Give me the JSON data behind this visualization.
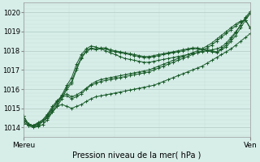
{
  "title": "Pression niveau de la mer( hPa )",
  "xlabel_left": "Mereu",
  "xlabel_right": "Ven",
  "ylim": [
    1013.5,
    1020.5
  ],
  "yticks": [
    1014,
    1015,
    1016,
    1017,
    1018,
    1019,
    1020
  ],
  "bg_color": "#d6ede8",
  "grid_major_color": "#b8d0c8",
  "grid_minor_color": "#c8ddd8",
  "line_color": "#1a5c2a",
  "n_points": 48,
  "lines": [
    [
      1014.2,
      1014.15,
      1014.1,
      1014.2,
      1014.3,
      1014.5,
      1014.8,
      1015.1,
      1015.2,
      1015.1,
      1015.0,
      1015.1,
      1015.2,
      1015.35,
      1015.5,
      1015.6,
      1015.65,
      1015.7,
      1015.75,
      1015.8,
      1015.85,
      1015.9,
      1015.95,
      1016.0,
      1016.05,
      1016.1,
      1016.15,
      1016.2,
      1016.3,
      1016.4,
      1016.5,
      1016.6,
      1016.7,
      1016.8,
      1016.9,
      1017.0,
      1017.1,
      1017.2,
      1017.35,
      1017.5,
      1017.65,
      1017.8,
      1017.95,
      1018.1,
      1018.3,
      1018.5,
      1018.7,
      1018.9
    ],
    [
      1014.3,
      1014.1,
      1014.05,
      1014.1,
      1014.3,
      1014.6,
      1015.0,
      1015.35,
      1015.6,
      1015.65,
      1015.5,
      1015.6,
      1015.75,
      1016.0,
      1016.2,
      1016.3,
      1016.4,
      1016.45,
      1016.5,
      1016.55,
      1016.6,
      1016.65,
      1016.7,
      1016.75,
      1016.8,
      1016.85,
      1016.9,
      1017.0,
      1017.1,
      1017.2,
      1017.3,
      1017.4,
      1017.5,
      1017.6,
      1017.7,
      1017.8,
      1017.9,
      1018.0,
      1018.15,
      1018.3,
      1018.5,
      1018.7,
      1018.9,
      1019.1,
      1019.3,
      1019.5,
      1019.6,
      1019.15
    ],
    [
      1014.4,
      1014.2,
      1014.1,
      1014.15,
      1014.4,
      1014.7,
      1015.1,
      1015.4,
      1015.65,
      1015.75,
      1015.6,
      1015.7,
      1015.85,
      1016.05,
      1016.25,
      1016.4,
      1016.5,
      1016.55,
      1016.6,
      1016.65,
      1016.7,
      1016.75,
      1016.8,
      1016.85,
      1016.9,
      1016.95,
      1017.0,
      1017.1,
      1017.2,
      1017.3,
      1017.4,
      1017.5,
      1017.6,
      1017.7,
      1017.8,
      1017.9,
      1018.0,
      1018.1,
      1018.25,
      1018.4,
      1018.6,
      1018.8,
      1019.0,
      1019.2,
      1019.4,
      1019.55,
      1019.6,
      1019.2
    ],
    [
      1014.5,
      1014.1,
      1014.0,
      1014.05,
      1014.15,
      1014.4,
      1014.8,
      1015.1,
      1015.5,
      1016.0,
      1016.3,
      1017.0,
      1017.6,
      1017.95,
      1018.1,
      1018.05,
      1018.1,
      1018.1,
      1018.0,
      1017.95,
      1017.9,
      1017.85,
      1017.8,
      1017.75,
      1017.7,
      1017.65,
      1017.65,
      1017.7,
      1017.75,
      1017.8,
      1017.85,
      1017.9,
      1017.95,
      1018.0,
      1018.05,
      1018.1,
      1018.1,
      1018.05,
      1018.0,
      1017.95,
      1017.9,
      1018.05,
      1018.2,
      1018.5,
      1018.8,
      1019.2,
      1019.6,
      1019.95
    ],
    [
      1014.6,
      1014.2,
      1014.1,
      1014.2,
      1014.3,
      1014.55,
      1014.9,
      1015.2,
      1015.6,
      1016.1,
      1016.4,
      1017.1,
      1017.65,
      1018.0,
      1018.15,
      1018.1,
      1018.15,
      1018.15,
      1018.05,
      1018.0,
      1017.95,
      1017.9,
      1017.85,
      1017.8,
      1017.75,
      1017.7,
      1017.7,
      1017.75,
      1017.8,
      1017.85,
      1017.9,
      1017.95,
      1018.0,
      1018.05,
      1018.1,
      1018.15,
      1018.15,
      1018.1,
      1018.05,
      1018.0,
      1017.95,
      1018.1,
      1018.3,
      1018.6,
      1018.95,
      1019.35,
      1019.75,
      1020.05
    ],
    [
      1014.6,
      1014.2,
      1014.1,
      1014.25,
      1014.4,
      1014.65,
      1015.0,
      1015.3,
      1015.7,
      1016.2,
      1016.6,
      1017.3,
      1017.8,
      1018.1,
      1018.25,
      1018.2,
      1018.1,
      1018.0,
      1017.9,
      1017.8,
      1017.7,
      1017.6,
      1017.55,
      1017.5,
      1017.45,
      1017.4,
      1017.4,
      1017.45,
      1017.5,
      1017.55,
      1017.6,
      1017.65,
      1017.7,
      1017.75,
      1017.8,
      1017.85,
      1017.9,
      1017.95,
      1018.0,
      1018.05,
      1018.1,
      1018.2,
      1018.4,
      1018.7,
      1019.0,
      1019.35,
      1019.7,
      1019.95
    ]
  ]
}
